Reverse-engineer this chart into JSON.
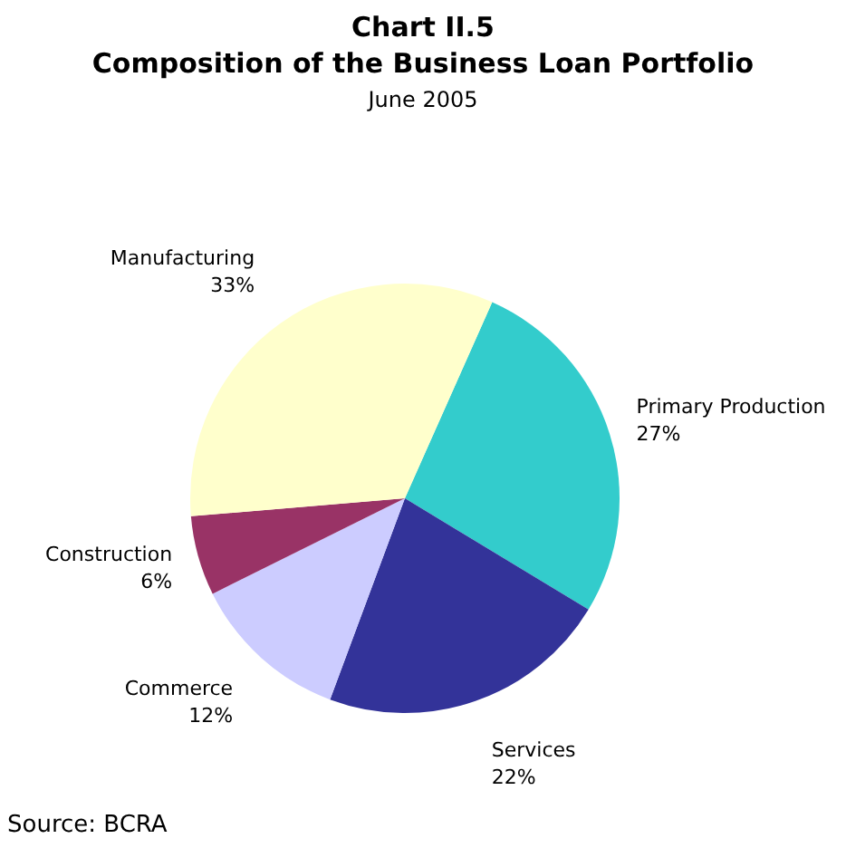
{
  "chart_data": {
    "type": "pie",
    "title": "Chart II.5",
    "subtitle": "Composition of the Business Loan Portfolio",
    "categories": [
      "Primary Production",
      "Services",
      "Commerce",
      "Construction",
      "Manufacturing"
    ],
    "values": [
      27,
      22,
      12,
      6,
      33
    ],
    "colors": [
      "#33cccc",
      "#333399",
      "#ccccff",
      "#993366",
      "#ffffcc"
    ],
    "value_labels": [
      "27%",
      "22%",
      "12%",
      "6%",
      "33%"
    ],
    "annotations": [
      "June 2005",
      "Source: BCRA"
    ],
    "legend": false
  }
}
